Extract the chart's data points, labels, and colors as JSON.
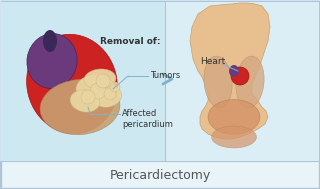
{
  "bg_color": "#d6eaf8",
  "bottom_bar_color": "#e8f4f8",
  "bottom_bar_border": "#b0c4d8",
  "title_text": "Pericardiectomy",
  "title_color": "#555555",
  "title_fontsize": 9,
  "divider_color": "#b0c4d8",
  "arrow_color": "#7fb3cc",
  "label_removal": "Removal of:",
  "label_tumors": "Tumors",
  "label_affected": "Affected\npericardium",
  "label_heart": "Heart",
  "heart_red": "#cc2222",
  "heart_purple": "#6b3a7d",
  "tumor_color": "#e8d5a0",
  "pericardium_color": "#c8a070",
  "body_skin": "#e8c090",
  "lung_color": "#d4a882",
  "organ_color": "#d4956a",
  "left_panel_bg": "#cde8f0",
  "right_panel_bg": "#dceef5",
  "line_color": "#7fb3cc",
  "text_color": "#333333"
}
